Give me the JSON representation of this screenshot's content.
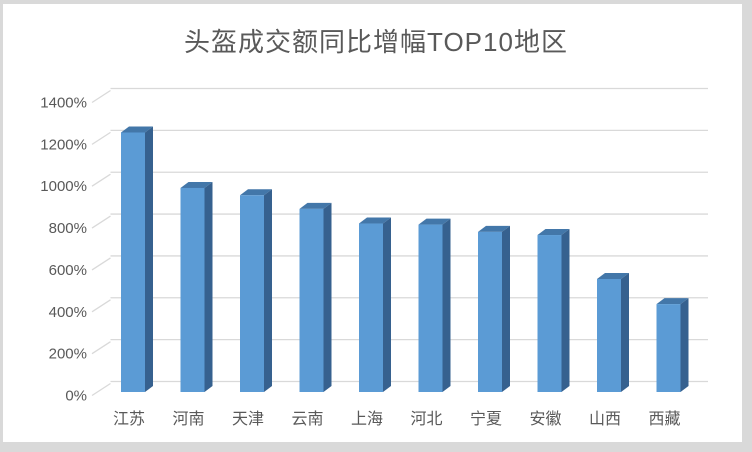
{
  "window": {
    "background": "#FFFFFF",
    "frame_color": "#D9D9D9"
  },
  "chart_data": {
    "type": "bar",
    "variant": "3d-column",
    "title": "头盔成交额同比增幅TOP10地区",
    "categories": [
      "江苏",
      "河南",
      "天津",
      "云南",
      "上海",
      "河北",
      "宁夏",
      "安徽",
      "山西",
      "西藏"
    ],
    "values": [
      1240,
      975,
      940,
      875,
      805,
      800,
      765,
      750,
      540,
      420
    ],
    "unit": "%",
    "xlabel": "",
    "ylabel": "",
    "ylim": [
      0,
      1400
    ],
    "ytick_step": 200,
    "ytick_labels": [
      "0%",
      "200%",
      "400%",
      "600%",
      "800%",
      "1000%",
      "1200%",
      "1400%"
    ],
    "grid": true,
    "legend": false,
    "colors": {
      "bar_front": "#5B9BD5",
      "bar_side": "#36618F",
      "bar_top": "#4377A9",
      "gridline": "#D9D9D9",
      "axis_text": "#595959",
      "title_text": "#595959"
    }
  }
}
